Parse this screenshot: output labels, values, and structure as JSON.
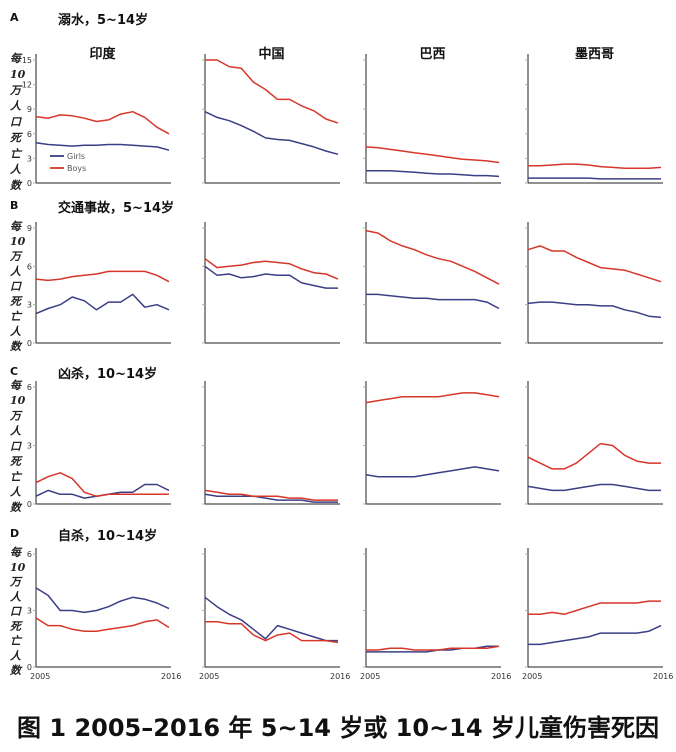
{
  "caption": "图 1 2005–2016 年 5~14 岁或 10~14 岁儿童伤害死因",
  "y_axis_label_chars": [
    "每",
    "10",
    "万",
    "人",
    "口",
    "死",
    "亡",
    "人",
    "数"
  ],
  "legend": [
    {
      "label": "Girls",
      "color": "#3a3f86"
    },
    {
      "label": "Boys",
      "color": "#d7362a"
    }
  ],
  "colors": {
    "girls": "#3a3f86",
    "boys": "#d7362a",
    "axis": "#222222",
    "tick_mark": "#9ab89a"
  },
  "chart_data": [
    {
      "letter": "A",
      "title": "溺水，5~14岁",
      "type": "line",
      "ylim": [
        0,
        15
      ],
      "yticks": [
        "0",
        "3",
        "6",
        "9",
        "12",
        "15"
      ],
      "x_ticks": [
        "2005",
        "2016"
      ],
      "x": [
        2005,
        2006,
        2007,
        2008,
        2009,
        2010,
        2011,
        2012,
        2013,
        2014,
        2015,
        2016
      ],
      "panels": [
        {
          "country": "印度",
          "series": [
            {
              "name": "Girls",
              "values": [
                4.9,
                4.7,
                4.6,
                4.5,
                4.6,
                4.6,
                4.7,
                4.7,
                4.6,
                4.5,
                4.4,
                4.0
              ]
            },
            {
              "name": "Boys",
              "values": [
                8.1,
                7.9,
                8.3,
                8.2,
                7.9,
                7.5,
                7.7,
                8.4,
                8.7,
                8.0,
                6.8,
                6.0
              ]
            }
          ]
        },
        {
          "country": "中国",
          "series": [
            {
              "name": "Girls",
              "values": [
                8.7,
                8.0,
                7.6,
                7.0,
                6.3,
                5.5,
                5.3,
                5.2,
                4.8,
                4.4,
                3.9,
                3.5
              ]
            },
            {
              "name": "Boys",
              "values": [
                15.0,
                15.0,
                14.2,
                14.0,
                12.3,
                11.4,
                10.2,
                10.2,
                9.4,
                8.8,
                7.8,
                7.3
              ]
            }
          ]
        },
        {
          "country": "巴西",
          "series": [
            {
              "name": "Girls",
              "values": [
                1.5,
                1.5,
                1.5,
                1.4,
                1.3,
                1.2,
                1.1,
                1.1,
                1.0,
                0.9,
                0.9,
                0.8
              ]
            },
            {
              "name": "Boys",
              "values": [
                4.4,
                4.3,
                4.1,
                3.9,
                3.7,
                3.5,
                3.3,
                3.1,
                2.9,
                2.8,
                2.7,
                2.5
              ]
            }
          ]
        },
        {
          "country": "墨西哥",
          "series": [
            {
              "name": "Girls",
              "values": [
                0.6,
                0.6,
                0.6,
                0.6,
                0.6,
                0.6,
                0.5,
                0.5,
                0.5,
                0.5,
                0.5,
                0.5
              ]
            },
            {
              "name": "Boys",
              "values": [
                2.1,
                2.1,
                2.2,
                2.3,
                2.3,
                2.2,
                2.0,
                1.9,
                1.8,
                1.8,
                1.8,
                1.9
              ]
            }
          ]
        }
      ]
    },
    {
      "letter": "B",
      "title": "交通事故，5~14岁",
      "type": "line",
      "ylim": [
        0,
        9
      ],
      "yticks": [
        "0",
        "3",
        "6",
        "9"
      ],
      "x_ticks": [
        "2005",
        "2016"
      ],
      "x": [
        2005,
        2006,
        2007,
        2008,
        2009,
        2010,
        2011,
        2012,
        2013,
        2014,
        2015,
        2016
      ],
      "panels": [
        {
          "country": "印度",
          "series": [
            {
              "name": "Girls",
              "values": [
                2.3,
                2.7,
                3.0,
                3.6,
                3.3,
                2.6,
                3.2,
                3.2,
                3.8,
                2.8,
                3.0,
                2.6
              ]
            },
            {
              "name": "Boys",
              "values": [
                5.0,
                4.9,
                5.0,
                5.2,
                5.3,
                5.4,
                5.6,
                5.6,
                5.6,
                5.6,
                5.3,
                4.8
              ]
            }
          ]
        },
        {
          "country": "中国",
          "series": [
            {
              "name": "Girls",
              "values": [
                6.0,
                5.3,
                5.4,
                5.1,
                5.2,
                5.4,
                5.3,
                5.3,
                4.7,
                4.5,
                4.3,
                4.3
              ]
            },
            {
              "name": "Boys",
              "values": [
                6.6,
                5.9,
                6.0,
                6.1,
                6.3,
                6.4,
                6.3,
                6.2,
                5.8,
                5.5,
                5.4,
                5.0
              ]
            }
          ]
        },
        {
          "country": "巴西",
          "series": [
            {
              "name": "Girls",
              "values": [
                3.8,
                3.8,
                3.7,
                3.6,
                3.5,
                3.5,
                3.4,
                3.4,
                3.4,
                3.4,
                3.2,
                2.7
              ]
            },
            {
              "name": "Boys",
              "values": [
                8.8,
                8.6,
                8.0,
                7.6,
                7.3,
                6.9,
                6.6,
                6.4,
                6.0,
                5.6,
                5.1,
                4.6
              ]
            }
          ]
        },
        {
          "country": "墨西哥",
          "series": [
            {
              "name": "Girls",
              "values": [
                3.1,
                3.2,
                3.2,
                3.1,
                3.0,
                3.0,
                2.9,
                2.9,
                2.6,
                2.4,
                2.1,
                2.0
              ]
            },
            {
              "name": "Boys",
              "values": [
                7.3,
                7.6,
                7.2,
                7.2,
                6.7,
                6.3,
                5.9,
                5.8,
                5.7,
                5.4,
                5.1,
                4.8
              ]
            }
          ]
        }
      ]
    },
    {
      "letter": "C",
      "title": "凶杀，10~14岁",
      "type": "line",
      "ylim": [
        0,
        6
      ],
      "yticks": [
        "0",
        "3",
        "6"
      ],
      "x_ticks": [
        "2005",
        "2016"
      ],
      "x": [
        2005,
        2006,
        2007,
        2008,
        2009,
        2010,
        2011,
        2012,
        2013,
        2014,
        2015,
        2016
      ],
      "panels": [
        {
          "country": "印度",
          "series": [
            {
              "name": "Girls",
              "values": [
                0.4,
                0.7,
                0.5,
                0.5,
                0.3,
                0.4,
                0.5,
                0.6,
                0.6,
                1.0,
                1.0,
                0.7
              ]
            },
            {
              "name": "Boys",
              "values": [
                1.1,
                1.4,
                1.6,
                1.3,
                0.6,
                0.4,
                0.5,
                0.5,
                0.5,
                0.5,
                0.5,
                0.5
              ]
            }
          ]
        },
        {
          "country": "中国",
          "series": [
            {
              "name": "Girls",
              "values": [
                0.5,
                0.4,
                0.4,
                0.4,
                0.4,
                0.3,
                0.2,
                0.2,
                0.2,
                0.1,
                0.1,
                0.1
              ]
            },
            {
              "name": "Boys",
              "values": [
                0.7,
                0.6,
                0.5,
                0.5,
                0.4,
                0.4,
                0.4,
                0.3,
                0.3,
                0.2,
                0.2,
                0.2
              ]
            }
          ]
        },
        {
          "country": "巴西",
          "series": [
            {
              "name": "Girls",
              "values": [
                1.5,
                1.4,
                1.4,
                1.4,
                1.4,
                1.5,
                1.6,
                1.7,
                1.8,
                1.9,
                1.8,
                1.7
              ]
            },
            {
              "name": "Boys",
              "values": [
                5.2,
                5.3,
                5.4,
                5.5,
                5.5,
                5.5,
                5.5,
                5.6,
                5.7,
                5.7,
                5.6,
                5.5
              ]
            }
          ]
        },
        {
          "country": "墨西哥",
          "series": [
            {
              "name": "Girls",
              "values": [
                0.9,
                0.8,
                0.7,
                0.7,
                0.8,
                0.9,
                1.0,
                1.0,
                0.9,
                0.8,
                0.7,
                0.7
              ]
            },
            {
              "name": "Boys",
              "values": [
                2.4,
                2.1,
                1.8,
                1.8,
                2.1,
                2.6,
                3.1,
                3.0,
                2.5,
                2.2,
                2.1,
                2.1
              ]
            }
          ]
        }
      ]
    },
    {
      "letter": "D",
      "title": "自杀，10~14岁",
      "type": "line",
      "ylim": [
        0,
        6
      ],
      "yticks": [
        "0",
        "3",
        "6"
      ],
      "x_ticks": [
        "2005",
        "2016"
      ],
      "x": [
        2005,
        2006,
        2007,
        2008,
        2009,
        2010,
        2011,
        2012,
        2013,
        2014,
        2015,
        2016
      ],
      "panels": [
        {
          "country": "印度",
          "series": [
            {
              "name": "Girls",
              "values": [
                4.2,
                3.8,
                3.0,
                3.0,
                2.9,
                3.0,
                3.2,
                3.5,
                3.7,
                3.6,
                3.4,
                3.1
              ]
            },
            {
              "name": "Boys",
              "values": [
                2.6,
                2.2,
                2.2,
                2.0,
                1.9,
                1.9,
                2.0,
                2.1,
                2.2,
                2.4,
                2.5,
                2.1
              ]
            }
          ]
        },
        {
          "country": "中国",
          "series": [
            {
              "name": "Girls",
              "values": [
                3.7,
                3.2,
                2.8,
                2.5,
                2.0,
                1.5,
                2.2,
                2.0,
                1.8,
                1.6,
                1.4,
                1.4
              ]
            },
            {
              "name": "Boys",
              "values": [
                2.4,
                2.4,
                2.3,
                2.3,
                1.7,
                1.4,
                1.7,
                1.8,
                1.4,
                1.4,
                1.4,
                1.3
              ]
            }
          ]
        },
        {
          "country": "巴西",
          "series": [
            {
              "name": "Girls",
              "values": [
                0.8,
                0.8,
                0.8,
                0.8,
                0.8,
                0.8,
                0.9,
                0.9,
                1.0,
                1.0,
                1.1,
                1.1
              ]
            },
            {
              "name": "Boys",
              "values": [
                0.9,
                0.9,
                1.0,
                1.0,
                0.9,
                0.9,
                0.9,
                1.0,
                1.0,
                1.0,
                1.0,
                1.1
              ]
            }
          ]
        },
        {
          "country": "墨西哥",
          "series": [
            {
              "name": "Girls",
              "values": [
                1.2,
                1.2,
                1.3,
                1.4,
                1.5,
                1.6,
                1.8,
                1.8,
                1.8,
                1.8,
                1.9,
                2.2
              ]
            },
            {
              "name": "Boys",
              "values": [
                2.8,
                2.8,
                2.9,
                2.8,
                3.0,
                3.2,
                3.4,
                3.4,
                3.4,
                3.4,
                3.5,
                3.5
              ]
            }
          ]
        }
      ]
    }
  ]
}
